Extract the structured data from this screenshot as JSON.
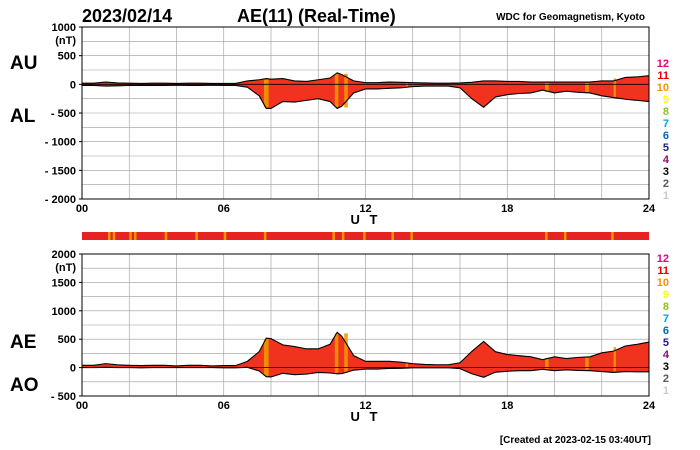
{
  "header": {
    "date": "2023/02/14",
    "title": "AE(11) (Real-Time)",
    "source": "WDC for Geomagnetism, Kyoto",
    "footer": "[Created at 2023-02-15 03:40UT]"
  },
  "legend": {
    "labels": [
      "12",
      "11",
      "10",
      "9",
      "8",
      "7",
      "6",
      "5",
      "4",
      "3",
      "2",
      "1"
    ],
    "colors": [
      "#e6007e",
      "#e60000",
      "#f29600",
      "#ffff00",
      "#8fc31f",
      "#00a0e9",
      "#0068b7",
      "#1d2088",
      "#920783",
      "#000000",
      "#595757",
      "#c9caca"
    ]
  },
  "chart_data": [
    {
      "type": "area",
      "name": "AU / AL",
      "title": "AE(11) (Real-Time)",
      "ylabel_top": "AU",
      "ylabel_bottom": "AL",
      "unit": "(nT)",
      "xlabel": "U T",
      "xlim": [
        0,
        24
      ],
      "ylim": [
        -2000,
        1000
      ],
      "yticks": [
        1000,
        500,
        0,
        -500,
        -1000,
        -1500,
        -2000
      ],
      "ytick_labels": [
        "1000",
        "500",
        "0",
        "- 500",
        "- 1000",
        "- 1500",
        "- 2000"
      ],
      "xticks": [
        0,
        6,
        12,
        18,
        24
      ],
      "xtick_labels": [
        "00",
        "06",
        "12",
        "18",
        "24"
      ],
      "grid": true,
      "series": [
        {
          "name": "AU",
          "x": [
            0,
            0.5,
            1,
            1.5,
            2,
            2.5,
            3,
            3.5,
            4,
            4.5,
            5,
            5.5,
            6,
            6.5,
            7,
            7.5,
            7.8,
            8,
            8.5,
            9,
            9.5,
            10,
            10.5,
            10.8,
            11,
            11.5,
            12,
            12.5,
            13,
            13.5,
            14,
            14.5,
            15,
            15.5,
            16,
            16.5,
            17,
            17.5,
            18,
            18.5,
            19,
            19.5,
            20,
            20.5,
            21,
            21.5,
            22,
            22.5,
            23,
            23.5,
            24
          ],
          "values": [
            20,
            20,
            40,
            25,
            20,
            15,
            20,
            20,
            15,
            20,
            20,
            15,
            15,
            15,
            60,
            80,
            100,
            90,
            100,
            60,
            50,
            80,
            110,
            200,
            170,
            60,
            30,
            30,
            40,
            35,
            30,
            25,
            20,
            20,
            25,
            35,
            60,
            60,
            50,
            50,
            40,
            40,
            40,
            40,
            40,
            40,
            60,
            60,
            120,
            130,
            150
          ]
        },
        {
          "name": "AL",
          "x": [
            0,
            0.5,
            1,
            1.5,
            2,
            2.5,
            3,
            3.5,
            4,
            4.5,
            5,
            5.5,
            6,
            6.5,
            7,
            7.5,
            7.8,
            8,
            8.5,
            9,
            9.5,
            10,
            10.5,
            10.8,
            11,
            11.5,
            12,
            12.5,
            13,
            13.5,
            14,
            14.5,
            15,
            15.5,
            16,
            16.5,
            17,
            17.5,
            18,
            18.5,
            19,
            19.5,
            20,
            20.5,
            21,
            21.5,
            22,
            22.5,
            23,
            23.5,
            24
          ],
          "values": [
            -20,
            -20,
            -30,
            -25,
            -20,
            -20,
            -20,
            -20,
            -15,
            -20,
            -20,
            -15,
            -20,
            -20,
            -50,
            -200,
            -420,
            -420,
            -300,
            -310,
            -280,
            -250,
            -300,
            -420,
            -380,
            -150,
            -80,
            -80,
            -70,
            -60,
            -40,
            -30,
            -30,
            -30,
            -60,
            -250,
            -400,
            -220,
            -180,
            -160,
            -150,
            -100,
            -150,
            -120,
            -140,
            -150,
            -200,
            -230,
            -260,
            -280,
            -300
          ]
        }
      ]
    },
    {
      "type": "area",
      "name": "AE / AO",
      "ylabel_top": "AE",
      "ylabel_bottom": "AO",
      "unit": "(nT)",
      "xlabel": "U T",
      "xlim": [
        0,
        24
      ],
      "ylim": [
        -500,
        2000
      ],
      "yticks": [
        2000,
        1500,
        1000,
        500,
        0,
        -500
      ],
      "ytick_labels": [
        "2000",
        "1500",
        "1000",
        "500",
        "0",
        "- 500"
      ],
      "xticks": [
        0,
        6,
        12,
        18,
        24
      ],
      "xtick_labels": [
        "00",
        "06",
        "12",
        "18",
        "24"
      ],
      "grid": true,
      "series": [
        {
          "name": "AE",
          "x": [
            0,
            0.5,
            1,
            1.5,
            2,
            2.5,
            3,
            3.5,
            4,
            4.5,
            5,
            5.5,
            6,
            6.5,
            7,
            7.5,
            7.8,
            8,
            8.5,
            9,
            9.5,
            10,
            10.5,
            10.8,
            11,
            11.5,
            12,
            12.5,
            13,
            13.5,
            14,
            14.5,
            15,
            15.5,
            16,
            16.5,
            17,
            17.5,
            18,
            18.5,
            19,
            19.5,
            20,
            20.5,
            21,
            21.5,
            22,
            22.5,
            23,
            23.5,
            24
          ],
          "values": [
            40,
            40,
            70,
            50,
            40,
            35,
            40,
            40,
            30,
            40,
            40,
            30,
            35,
            35,
            110,
            280,
            520,
            510,
            400,
            370,
            330,
            330,
            410,
            620,
            550,
            210,
            110,
            110,
            110,
            95,
            70,
            55,
            50,
            50,
            85,
            285,
            460,
            280,
            230,
            210,
            190,
            140,
            190,
            160,
            180,
            190,
            260,
            290,
            380,
            410,
            450
          ]
        },
        {
          "name": "AO",
          "x": [
            0,
            0.5,
            1,
            1.5,
            2,
            2.5,
            3,
            3.5,
            4,
            4.5,
            5,
            5.5,
            6,
            6.5,
            7,
            7.5,
            7.8,
            8,
            8.5,
            9,
            9.5,
            10,
            10.5,
            10.8,
            11,
            11.5,
            12,
            12.5,
            13,
            13.5,
            14,
            14.5,
            15,
            15.5,
            16,
            16.5,
            17,
            17.5,
            18,
            18.5,
            19,
            19.5,
            20,
            20.5,
            21,
            21.5,
            22,
            22.5,
            23,
            23.5,
            24
          ],
          "values": [
            0,
            0,
            5,
            0,
            0,
            -3,
            0,
            0,
            0,
            0,
            0,
            0,
            -3,
            -3,
            5,
            -60,
            -160,
            -165,
            -100,
            -125,
            -115,
            -85,
            -95,
            -110,
            -105,
            -45,
            -25,
            -25,
            -15,
            -13,
            -5,
            -3,
            -5,
            -5,
            -18,
            -108,
            -170,
            -80,
            -65,
            -55,
            -55,
            -30,
            -55,
            -40,
            -50,
            -55,
            -70,
            -85,
            -70,
            -75,
            -75
          ]
        }
      ]
    }
  ]
}
